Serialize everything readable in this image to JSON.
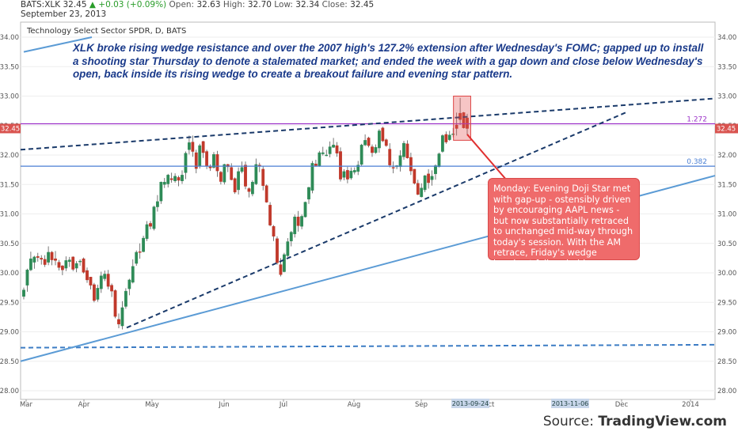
{
  "header": {
    "symbol": "BATS:XLK",
    "last": "32.45",
    "change": "+0.03 (+0.09%)",
    "open_label": "Open:",
    "open": "32.63",
    "high_label": "High:",
    "high": "32.70",
    "low_label": "Low:",
    "low": "32.34",
    "close_label": "Close:",
    "close": "32.45",
    "date": "September 23, 2013"
  },
  "subtitle": "Technology Select Sector SPDR, D, BATS",
  "headline": "XLK broke rising wedge resistance and over the 2007 high's 127.2% extension after Wednesday's FOMC; gapped up to install a shooting star Thursday to denote a stalemated market; and ended the week with a gap down and close below Wednesday's open, back inside its rising wedge to create a breakout failure and evening star pattern.",
  "callout": "Monday: Evening Doji Star met with gap-up - ostensibly driven by encouraging AAPL news - but now substantially retraced to unchanged mid-way through today's session. With the AM retrace, Friday's wedge breakout failure holds....",
  "source_prefix": "Source: ",
  "source_name": "TradingView.com",
  "colors": {
    "up": "#2e8b57",
    "down": "#c0392b",
    "fib_line": "#4a7fd4",
    "ext_line": "#9b30c8",
    "trend_dashed": "#1a3a6a",
    "trend_solid": "#5b9bd5",
    "callout": "#ef6b6b",
    "price_tag": "#d9534f"
  },
  "chart_data": {
    "type": "candlestick",
    "yticks": [
      "28.00",
      "28.50",
      "29.00",
      "29.50",
      "30.00",
      "30.50",
      "31.00",
      "31.50",
      "32.00",
      "32.50",
      "33.00",
      "33.50",
      "34.00"
    ],
    "ylim": [
      28.0,
      34.0
    ],
    "xticks": [
      "Mar",
      "Apr",
      "May",
      "Jun",
      "Jul",
      "Aug",
      "Sep",
      "Oct",
      "Dec",
      "2014"
    ],
    "date_tags": [
      "2013-09-24",
      "2013-11-06"
    ],
    "levels": [
      {
        "label": "1.272",
        "value": 32.53
      },
      {
        "label": "0.382",
        "value": 31.81
      }
    ],
    "last_price": "32.45",
    "candles": [
      [
        29.6,
        29.71,
        29.55,
        29.75
      ],
      [
        29.79,
        30.05,
        29.68,
        30.07
      ],
      [
        30.05,
        30.24,
        30.03,
        30.36
      ],
      [
        30.18,
        30.27,
        30.07,
        30.29
      ],
      [
        30.28,
        30.26,
        30.19,
        30.34
      ],
      [
        30.25,
        30.23,
        30.14,
        30.3
      ],
      [
        30.23,
        30.14,
        30.1,
        30.3
      ],
      [
        30.18,
        30.35,
        30.13,
        30.45
      ],
      [
        30.35,
        30.22,
        30.13,
        30.37
      ],
      [
        30.24,
        30.21,
        30.13,
        30.37
      ],
      [
        30.18,
        30.09,
        30.04,
        30.22
      ],
      [
        30.12,
        30.05,
        29.96,
        30.13
      ],
      [
        30.08,
        30.21,
        30.03,
        30.28
      ],
      [
        30.19,
        30.22,
        30.1,
        30.27
      ],
      [
        30.27,
        30.06,
        30.03,
        30.28
      ],
      [
        30.08,
        30.16,
        30.01,
        30.2
      ],
      [
        30.19,
        30.2,
        30.12,
        30.23
      ],
      [
        30.24,
        30.01,
        29.99,
        30.26
      ],
      [
        30.04,
        29.88,
        29.83,
        30.09
      ],
      [
        29.93,
        29.79,
        29.72,
        29.93
      ],
      [
        29.8,
        29.53,
        29.5,
        29.83
      ],
      [
        29.55,
        29.74,
        29.51,
        29.8
      ],
      [
        29.73,
        29.95,
        29.66,
        30.02
      ],
      [
        29.9,
        29.98,
        29.86,
        30.04
      ],
      [
        29.98,
        29.77,
        29.72,
        30.05
      ],
      [
        29.79,
        29.69,
        29.59,
        29.82
      ],
      [
        29.7,
        29.26,
        29.23,
        29.72
      ],
      [
        29.21,
        29.13,
        29.06,
        29.31
      ],
      [
        29.1,
        29.41,
        29.04,
        29.52
      ],
      [
        29.43,
        29.69,
        29.39,
        29.74
      ],
      [
        29.73,
        29.88,
        29.62,
        29.9
      ],
      [
        29.84,
        30.11,
        29.82,
        30.23
      ],
      [
        30.16,
        30.35,
        30.12,
        30.38
      ],
      [
        30.36,
        30.35,
        30.24,
        30.5
      ],
      [
        30.36,
        30.59,
        30.35,
        30.63
      ],
      [
        30.58,
        30.82,
        30.54,
        30.88
      ],
      [
        30.84,
        30.79,
        30.74,
        30.88
      ],
      [
        30.75,
        31.12,
        30.72,
        31.14
      ],
      [
        31.12,
        31.21,
        31.04,
        31.32
      ],
      [
        31.22,
        31.54,
        31.17,
        31.55
      ],
      [
        31.5,
        31.54,
        31.44,
        31.61
      ],
      [
        31.51,
        31.66,
        31.45,
        31.68
      ],
      [
        31.6,
        31.58,
        31.53,
        31.7
      ],
      [
        31.56,
        31.64,
        31.53,
        31.69
      ],
      [
        31.62,
        31.57,
        31.47,
        31.65
      ],
      [
        31.56,
        31.66,
        31.51,
        31.74
      ],
      [
        31.7,
        32.03,
        31.59,
        32.06
      ],
      [
        32.09,
        32.21,
        32.01,
        32.33
      ],
      [
        32.22,
        32.06,
        31.97,
        32.33
      ],
      [
        32.04,
        31.77,
        31.69,
        32.09
      ],
      [
        31.81,
        32.16,
        31.77,
        32.19
      ],
      [
        32.23,
        32.04,
        31.95,
        32.24
      ],
      [
        32.06,
        31.81,
        31.76,
        32.09
      ],
      [
        31.8,
        31.78,
        31.73,
        31.84
      ],
      [
        31.79,
        32.01,
        31.77,
        32.05
      ],
      [
        32.01,
        31.73,
        31.63,
        32.07
      ],
      [
        31.71,
        31.55,
        31.5,
        31.73
      ],
      [
        31.54,
        31.84,
        31.5,
        31.85
      ],
      [
        31.84,
        31.8,
        31.71,
        31.85
      ],
      [
        31.79,
        31.58,
        31.57,
        31.86
      ],
      [
        31.6,
        31.37,
        31.34,
        31.62
      ],
      [
        31.41,
        31.72,
        31.33,
        31.79
      ],
      [
        31.72,
        31.79,
        31.69,
        31.89
      ],
      [
        31.83,
        31.47,
        31.42,
        31.89
      ],
      [
        31.43,
        31.38,
        31.28,
        31.45
      ],
      [
        31.34,
        31.54,
        31.3,
        31.57
      ],
      [
        31.51,
        31.84,
        31.49,
        31.94
      ],
      [
        31.83,
        31.81,
        31.71,
        31.87
      ],
      [
        31.76,
        31.48,
        31.4,
        31.81
      ],
      [
        31.48,
        31.2,
        31.19,
        31.5
      ],
      [
        31.15,
        30.81,
        30.79,
        31.2
      ],
      [
        30.79,
        30.62,
        30.54,
        30.81
      ],
      [
        30.58,
        30.17,
        30.14,
        30.62
      ],
      [
        30.14,
        29.97,
        29.94,
        30.25
      ],
      [
        30.02,
        30.31,
        30.01,
        30.34
      ],
      [
        30.29,
        30.53,
        30.27,
        30.59
      ],
      [
        30.54,
        30.69,
        30.45,
        30.71
      ],
      [
        30.66,
        30.95,
        30.6,
        30.99
      ],
      [
        30.95,
        30.8,
        30.7,
        31.05
      ],
      [
        30.79,
        30.96,
        30.74,
        30.99
      ],
      [
        30.95,
        31.2,
        30.94,
        31.21
      ],
      [
        31.25,
        31.45,
        31.17,
        31.46
      ],
      [
        31.4,
        31.86,
        31.35,
        31.9
      ],
      [
        31.85,
        31.82,
        31.8,
        31.92
      ],
      [
        31.81,
        32.04,
        31.8,
        32.07
      ],
      [
        32.02,
        32.04,
        31.99,
        32.14
      ],
      [
        32.0,
        32.0,
        31.98,
        32.09
      ],
      [
        32.02,
        32.14,
        31.96,
        32.23
      ],
      [
        32.13,
        32.17,
        32.12,
        32.29
      ],
      [
        32.16,
        32.03,
        31.97,
        32.22
      ],
      [
        32.06,
        31.59,
        31.55,
        32.13
      ],
      [
        31.62,
        31.72,
        31.57,
        31.76
      ],
      [
        31.74,
        31.59,
        31.52,
        31.8
      ],
      [
        31.61,
        31.73,
        31.58,
        31.79
      ],
      [
        31.71,
        31.74,
        31.67,
        31.79
      ],
      [
        31.72,
        31.83,
        31.66,
        31.9
      ],
      [
        31.84,
        32.17,
        31.82,
        32.19
      ],
      [
        32.17,
        32.25,
        32.15,
        32.35
      ],
      [
        32.29,
        32.16,
        32.13,
        32.31
      ],
      [
        32.14,
        32.04,
        31.97,
        32.18
      ],
      [
        32.04,
        32.13,
        32.02,
        32.18
      ],
      [
        32.12,
        32.41,
        32.04,
        32.44
      ],
      [
        32.46,
        32.24,
        32.22,
        32.48
      ],
      [
        32.26,
        32.16,
        32.14,
        32.28
      ],
      [
        32.1,
        31.83,
        31.79,
        32.2
      ],
      [
        31.79,
        31.78,
        31.69,
        31.89
      ],
      [
        31.8,
        31.82,
        31.76,
        31.83
      ],
      [
        31.8,
        31.99,
        31.72,
        32.08
      ],
      [
        31.97,
        32.2,
        31.92,
        32.24
      ],
      [
        32.19,
        31.95,
        31.94,
        32.25
      ],
      [
        31.96,
        31.73,
        31.66,
        32.04
      ],
      [
        31.76,
        31.52,
        31.5,
        31.76
      ],
      [
        31.52,
        31.33,
        31.32,
        31.58
      ],
      [
        31.29,
        31.44,
        31.28,
        31.52
      ],
      [
        31.41,
        31.65,
        31.37,
        31.66
      ],
      [
        31.68,
        31.53,
        31.43,
        31.76
      ],
      [
        31.58,
        31.64,
        31.48,
        31.74
      ],
      [
        31.68,
        31.82,
        31.58,
        31.84
      ],
      [
        31.8,
        32.02,
        31.79,
        32.04
      ],
      [
        32.06,
        32.33,
        32.04,
        32.35
      ],
      [
        32.35,
        32.22,
        32.19,
        32.4
      ],
      [
        32.26,
        32.34,
        32.24,
        32.41
      ],
      [
        32.36,
        32.36,
        32.3,
        32.46
      ],
      [
        32.51,
        32.45,
        32.33,
        32.72
      ],
      [
        32.71,
        32.6,
        32.51,
        32.97
      ],
      [
        32.72,
        32.46,
        32.45,
        32.73
      ],
      [
        32.63,
        32.45,
        32.34,
        32.7
      ]
    ]
  }
}
